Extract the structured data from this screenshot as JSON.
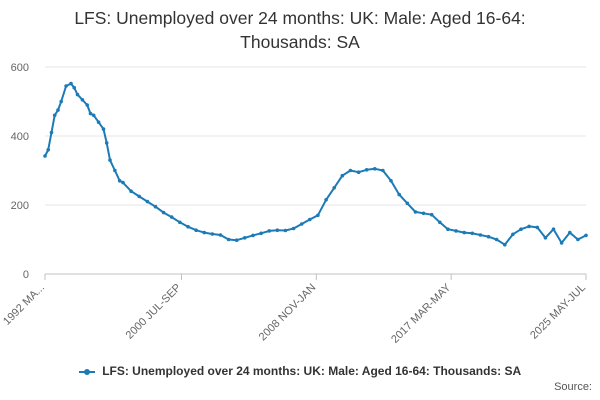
{
  "chart_data": {
    "type": "line",
    "title_line1": "LFS: Unemployed over 24 months: UK: Male: Aged 16-64:",
    "title_line2": "Thousands: SA",
    "xlabel": "",
    "ylabel": "",
    "ylim": [
      0,
      600
    ],
    "yticks": [
      0,
      200,
      400,
      600
    ],
    "x_tick_labels": [
      "1992 MA...",
      "2000 JUL-SEP",
      "2008 NOV-JAN",
      "2017 MAR-MAY",
      "2025 MAY-JUL"
    ],
    "x_tick_years": [
      1992.2,
      2000.6,
      2008.9,
      2017.2,
      2025.5
    ],
    "grid": true,
    "legend_position": "bottom",
    "source_label": "Source:",
    "color": "#1c7bb6",
    "series": [
      {
        "name": "LFS: Unemployed over 24 months: UK: Male: Aged 16-64: Thousands: SA",
        "x": [
          1992.2,
          1992.4,
          1992.6,
          1992.8,
          1993.0,
          1993.2,
          1993.5,
          1993.8,
          1994.0,
          1994.2,
          1994.5,
          1994.8,
          1995.0,
          1995.2,
          1995.5,
          1995.8,
          1996.0,
          1996.2,
          1996.5,
          1996.8,
          1997.0,
          1997.5,
          1998.0,
          1998.5,
          1999.0,
          1999.5,
          2000.0,
          2000.5,
          2001.0,
          2001.5,
          2002.0,
          2002.5,
          2003.0,
          2003.5,
          2004.0,
          2004.5,
          2005.0,
          2005.5,
          2006.0,
          2006.5,
          2007.0,
          2007.5,
          2008.0,
          2008.5,
          2009.0,
          2009.5,
          2010.0,
          2010.5,
          2011.0,
          2011.5,
          2012.0,
          2012.5,
          2013.0,
          2013.5,
          2014.0,
          2014.5,
          2015.0,
          2015.5,
          2016.0,
          2016.5,
          2017.0,
          2017.5,
          2018.0,
          2018.5,
          2019.0,
          2019.5,
          2020.0,
          2020.5,
          2021.0,
          2021.5,
          2022.0,
          2022.5,
          2023.0,
          2023.5,
          2024.0,
          2024.5,
          2025.0,
          2025.5
        ],
        "y": [
          342,
          360,
          410,
          460,
          475,
          500,
          545,
          552,
          540,
          520,
          505,
          490,
          465,
          460,
          440,
          420,
          380,
          330,
          300,
          270,
          265,
          240,
          225,
          210,
          195,
          178,
          165,
          150,
          137,
          127,
          120,
          116,
          113,
          100,
          98,
          105,
          112,
          118,
          125,
          127,
          126,
          132,
          145,
          158,
          170,
          215,
          250,
          285,
          300,
          295,
          302,
          305,
          300,
          270,
          230,
          205,
          180,
          176,
          172,
          150,
          130,
          125,
          120,
          118,
          113,
          108,
          100,
          85,
          115,
          130,
          138,
          135,
          105,
          130,
          90,
          120,
          100,
          112
        ]
      }
    ]
  }
}
